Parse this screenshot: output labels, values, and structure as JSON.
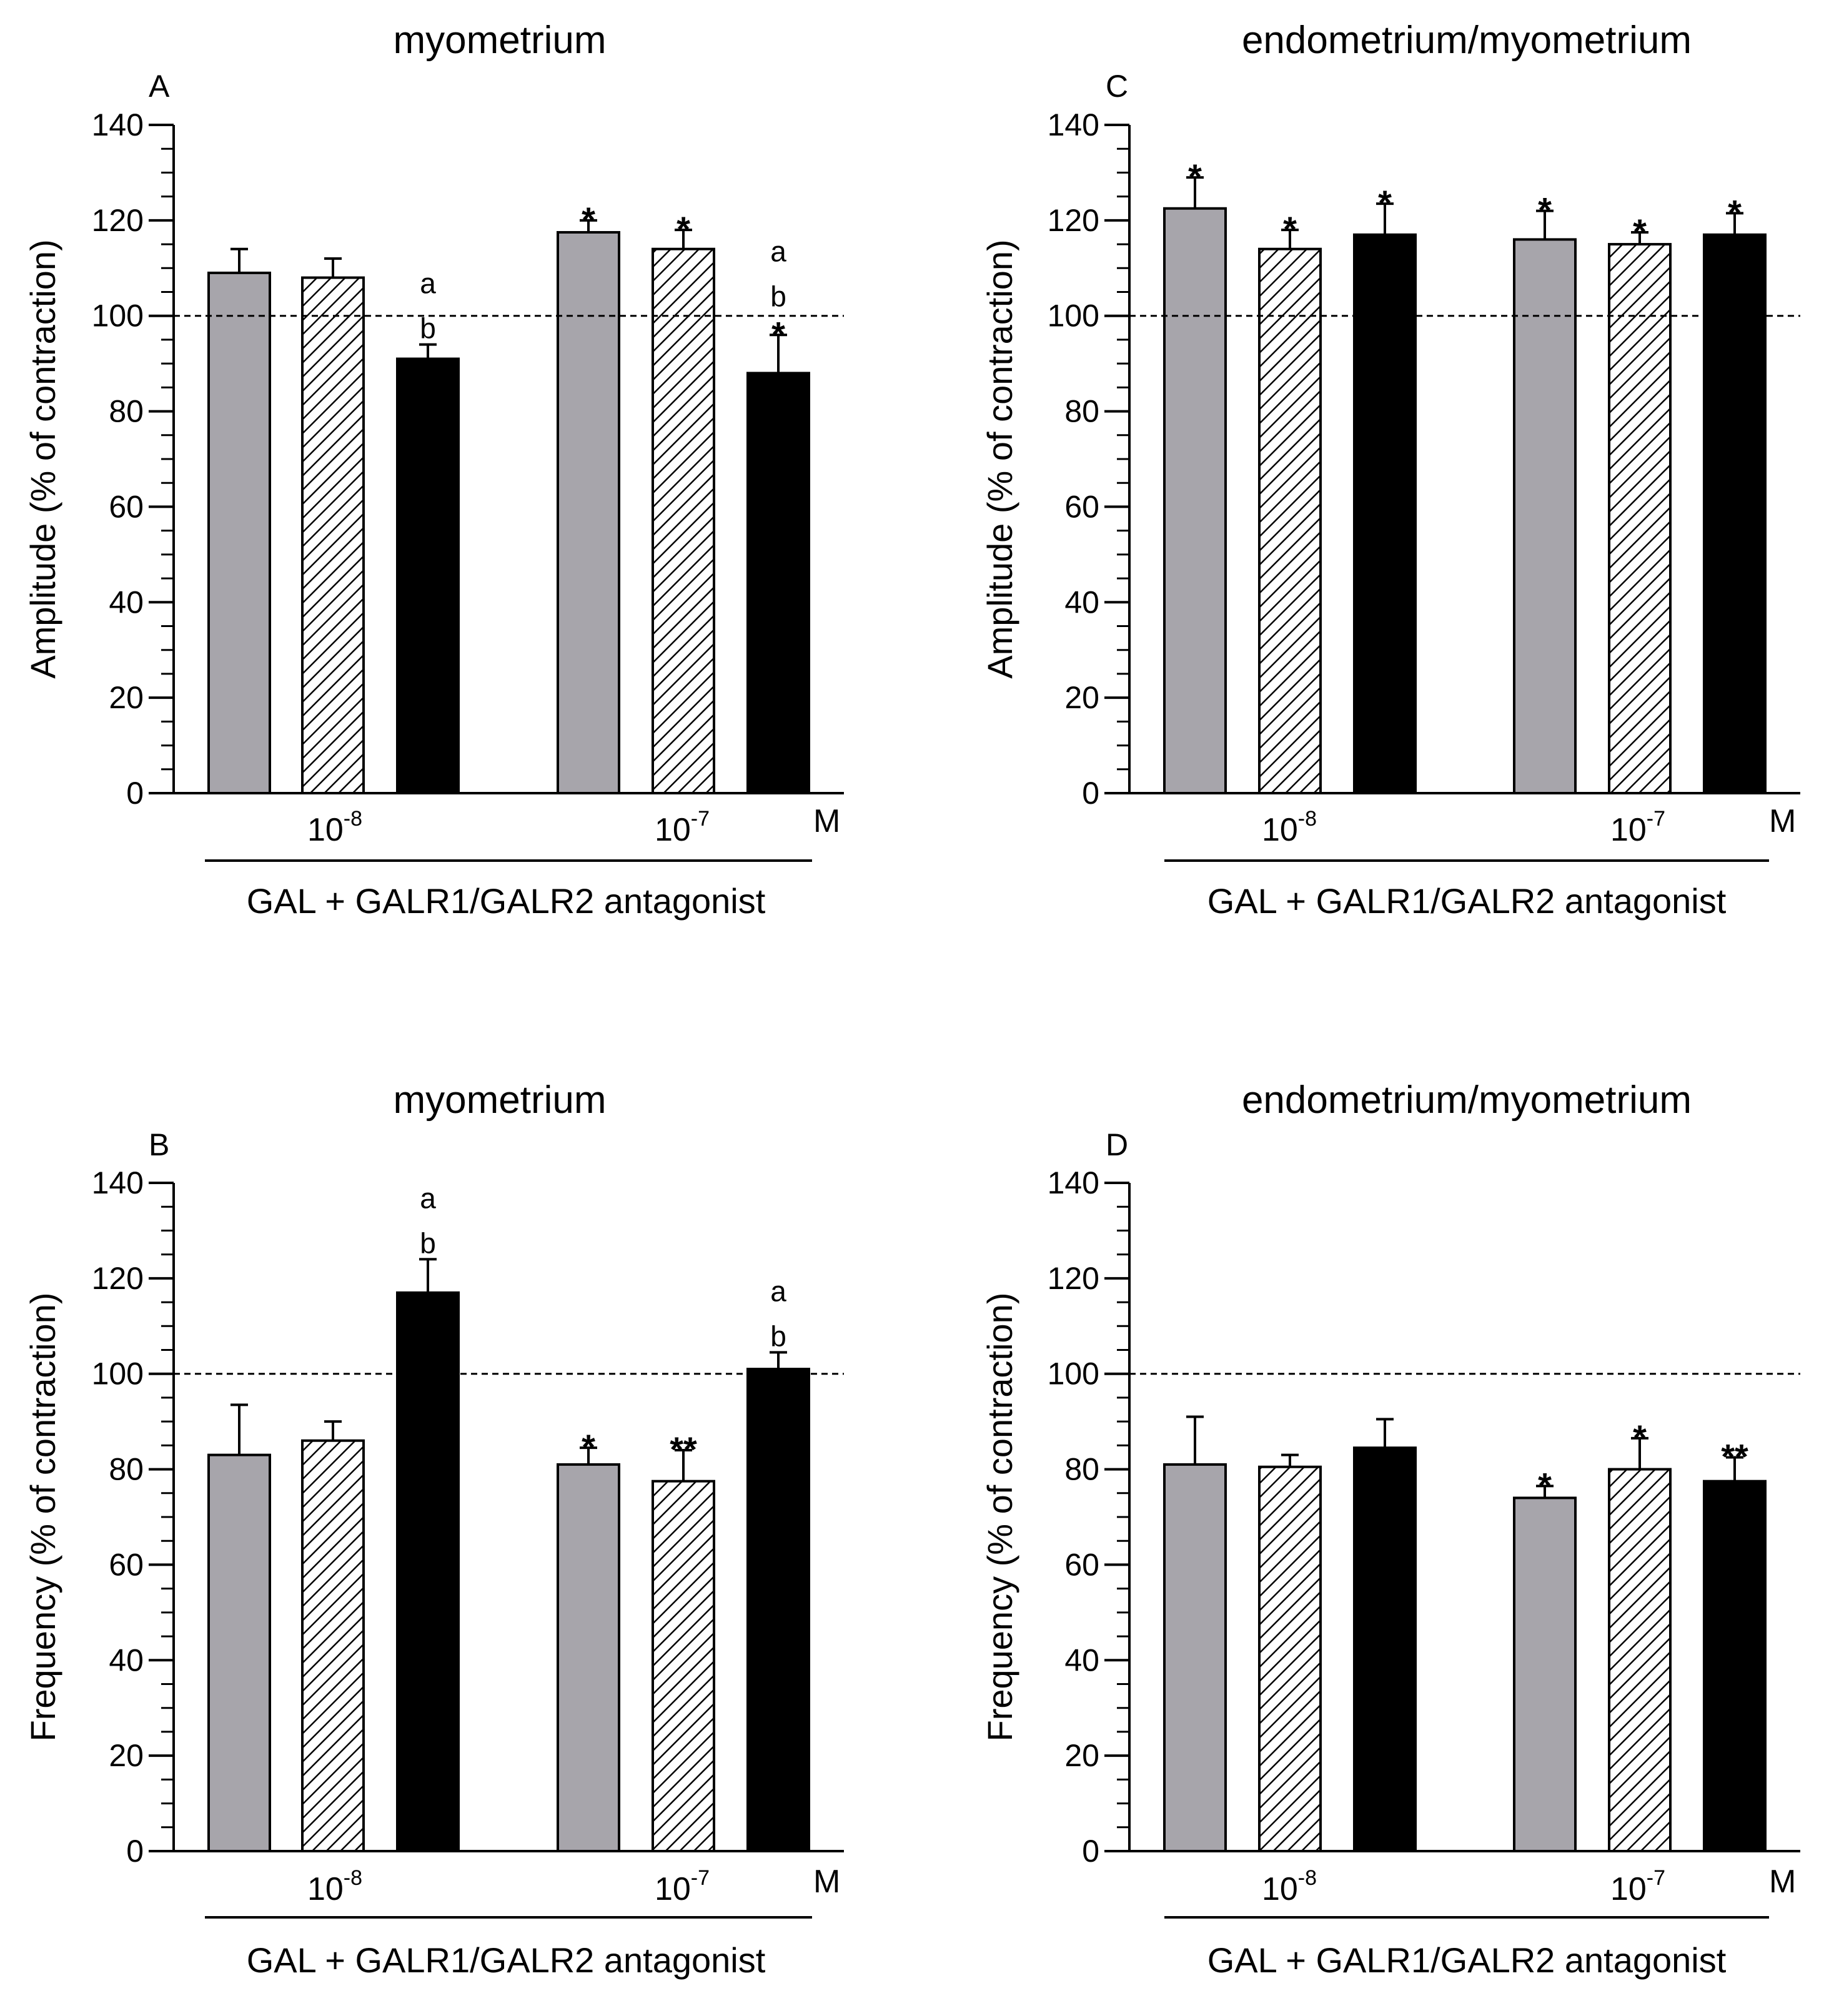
{
  "figure": {
    "unit_label": "M",
    "xlabel": "GAL + GALR1/GALR2 antagonist",
    "group_labels": [
      {
        "base": "10",
        "exp": "-8"
      },
      {
        "base": "10",
        "exp": "-7"
      }
    ],
    "colors": {
      "gray_fill": "#a7a5ab",
      "black_fill": "#000000",
      "hatch": "#000000",
      "axis": "#000000"
    },
    "bar_styles": [
      "gray",
      "hatched",
      "black"
    ]
  },
  "chart_data": [
    {
      "type": "bar",
      "panel": "A",
      "title": "myometrium",
      "ylabel": "Amplitude (% of contraction)",
      "ylim": [
        0,
        140
      ],
      "yticks": [
        0,
        20,
        40,
        60,
        80,
        100,
        120,
        140
      ],
      "reference_line": 100,
      "bar_count": 3,
      "series": [
        {
          "name": "10-8",
          "bars": [
            {
              "value": 109,
              "error": 5,
              "annotation": ""
            },
            {
              "value": 108,
              "error": 4,
              "annotation": ""
            },
            {
              "value": 91,
              "error": 3,
              "annotation": "a b"
            }
          ]
        },
        {
          "name": "10-7",
          "bars": [
            {
              "value": 117.5,
              "error": 2.5,
              "annotation": "*"
            },
            {
              "value": 114,
              "error": 4,
              "annotation": "*"
            },
            {
              "value": 88,
              "error": 8,
              "annotation": "a b *"
            }
          ]
        }
      ]
    },
    {
      "type": "bar",
      "panel": "C",
      "title": "endometrium/myometrium",
      "ylabel": "Amplitude (% of contraction)",
      "ylim": [
        0,
        140
      ],
      "yticks": [
        0,
        20,
        40,
        60,
        80,
        100,
        120,
        140
      ],
      "reference_line": 100,
      "bar_count": 3,
      "series": [
        {
          "name": "10-8",
          "bars": [
            {
              "value": 122.5,
              "error": 6.5,
              "annotation": "*"
            },
            {
              "value": 114,
              "error": 4,
              "annotation": "*"
            },
            {
              "value": 117,
              "error": 6.5,
              "annotation": "*"
            }
          ]
        },
        {
          "name": "10-7",
          "bars": [
            {
              "value": 116,
              "error": 6,
              "annotation": "*"
            },
            {
              "value": 115,
              "error": 2.5,
              "annotation": "*"
            },
            {
              "value": 117,
              "error": 4.5,
              "annotation": "*"
            }
          ]
        }
      ]
    },
    {
      "type": "bar",
      "panel": "B",
      "title": "myometrium",
      "ylabel": "Frequency (% of contraction)",
      "ylim": [
        0,
        140
      ],
      "yticks": [
        0,
        20,
        40,
        60,
        80,
        100,
        120,
        140
      ],
      "reference_line": 100,
      "bar_count": 3,
      "series": [
        {
          "name": "10-8",
          "bars": [
            {
              "value": 83,
              "error": 10.5,
              "annotation": ""
            },
            {
              "value": 86,
              "error": 4,
              "annotation": ""
            },
            {
              "value": 117,
              "error": 7,
              "annotation": "a b"
            }
          ]
        },
        {
          "name": "10-7",
          "bars": [
            {
              "value": 81,
              "error": 3.5,
              "annotation": "*"
            },
            {
              "value": 77.5,
              "error": 6.5,
              "annotation": "**"
            },
            {
              "value": 101,
              "error": 3.5,
              "annotation": "a b"
            }
          ]
        }
      ]
    },
    {
      "type": "bar",
      "panel": "D",
      "title": "endometrium/myometrium",
      "ylabel": "Frequency (% of contraction)",
      "ylim": [
        0,
        140
      ],
      "yticks": [
        0,
        20,
        40,
        60,
        80,
        100,
        120,
        140
      ],
      "reference_line": 100,
      "bar_count": 3,
      "series": [
        {
          "name": "10-8",
          "bars": [
            {
              "value": 81,
              "error": 10,
              "annotation": ""
            },
            {
              "value": 80.5,
              "error": 2.5,
              "annotation": ""
            },
            {
              "value": 84.5,
              "error": 6,
              "annotation": ""
            }
          ]
        },
        {
          "name": "10-7",
          "bars": [
            {
              "value": 74,
              "error": 2.5,
              "annotation": "*"
            },
            {
              "value": 80,
              "error": 6.5,
              "annotation": "*"
            },
            {
              "value": 77.5,
              "error": 5,
              "annotation": "**"
            }
          ]
        }
      ]
    }
  ]
}
